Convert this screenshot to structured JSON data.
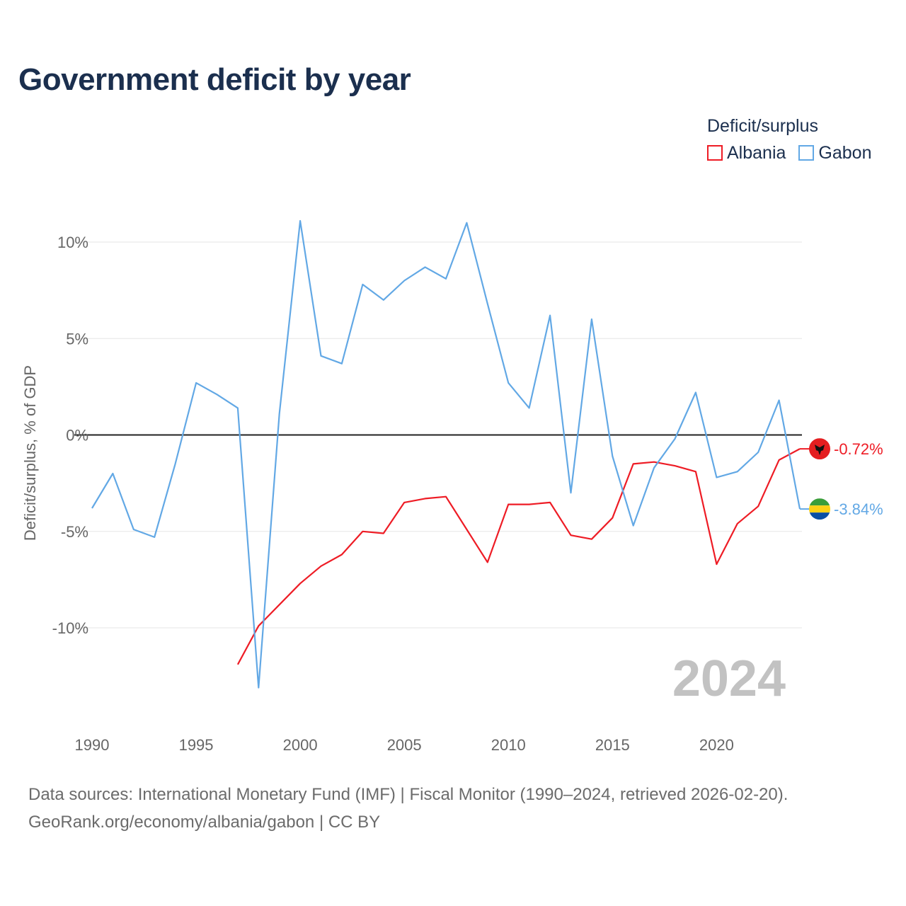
{
  "title": "Government deficit by year",
  "legend": {
    "title": "Deficit/surplus",
    "items": [
      {
        "label": "Albania",
        "color": "#ee1c25"
      },
      {
        "label": "Gabon",
        "color": "#62a8e5"
      }
    ]
  },
  "year_watermark": "2024",
  "source": {
    "line1": "Data sources: International Monetary Fund (IMF) | Fiscal Monitor (1990–2024, retrieved 2026-02-20).",
    "line2": "GeoRank.org/economy/albania/gabon | CC BY"
  },
  "chart_data": {
    "type": "line",
    "title": "Government deficit by year",
    "xlabel": "",
    "ylabel": "Deficit/surplus, % of GDP",
    "xlim": [
      1990,
      2024
    ],
    "ylim": [
      -15,
      12.5
    ],
    "xticks": [
      1990,
      1995,
      2000,
      2005,
      2010,
      2015,
      2020
    ],
    "yticks": [
      10,
      5,
      0,
      -5,
      -10
    ],
    "ytick_labels": [
      "10%",
      "5%",
      "0%",
      "-5%",
      "-10%"
    ],
    "grid": true,
    "series": [
      {
        "name": "Albania",
        "color": "#ee1c25",
        "end_label": "-0.72%",
        "flag": "albania-flag-icon",
        "x": [
          1997,
          1998,
          1999,
          2000,
          2001,
          2002,
          2003,
          2004,
          2005,
          2006,
          2007,
          2008,
          2009,
          2010,
          2011,
          2012,
          2013,
          2014,
          2015,
          2016,
          2017,
          2018,
          2019,
          2020,
          2021,
          2022,
          2023,
          2024
        ],
        "values": [
          -11.9,
          -9.9,
          -8.8,
          -7.7,
          -6.8,
          -6.2,
          -5.0,
          -5.1,
          -3.5,
          -3.3,
          -3.2,
          -4.9,
          -6.6,
          -3.6,
          -3.6,
          -3.5,
          -5.2,
          -5.4,
          -4.3,
          -1.5,
          -1.4,
          -1.6,
          -1.9,
          -6.7,
          -4.6,
          -3.7,
          -1.3,
          -0.72
        ]
      },
      {
        "name": "Gabon",
        "color": "#62a8e5",
        "end_label": "-3.84%",
        "flag": "gabon-flag-icon",
        "x": [
          1990,
          1991,
          1992,
          1993,
          1994,
          1995,
          1996,
          1997,
          1998,
          1999,
          2000,
          2001,
          2002,
          2003,
          2004,
          2005,
          2006,
          2007,
          2008,
          2009,
          2010,
          2011,
          2012,
          2013,
          2014,
          2015,
          2016,
          2017,
          2018,
          2019,
          2020,
          2021,
          2022,
          2023,
          2024
        ],
        "values": [
          -3.8,
          -2.0,
          -4.9,
          -5.3,
          -1.5,
          2.7,
          2.1,
          1.4,
          -13.1,
          1.1,
          11.1,
          4.1,
          3.7,
          7.8,
          7.0,
          8.0,
          8.7,
          8.1,
          11.0,
          6.8,
          2.7,
          1.4,
          6.2,
          -3.0,
          6.0,
          -1.1,
          -4.7,
          -1.7,
          -0.2,
          2.2,
          -2.2,
          -1.9,
          -0.9,
          1.8,
          -3.84
        ]
      }
    ]
  }
}
